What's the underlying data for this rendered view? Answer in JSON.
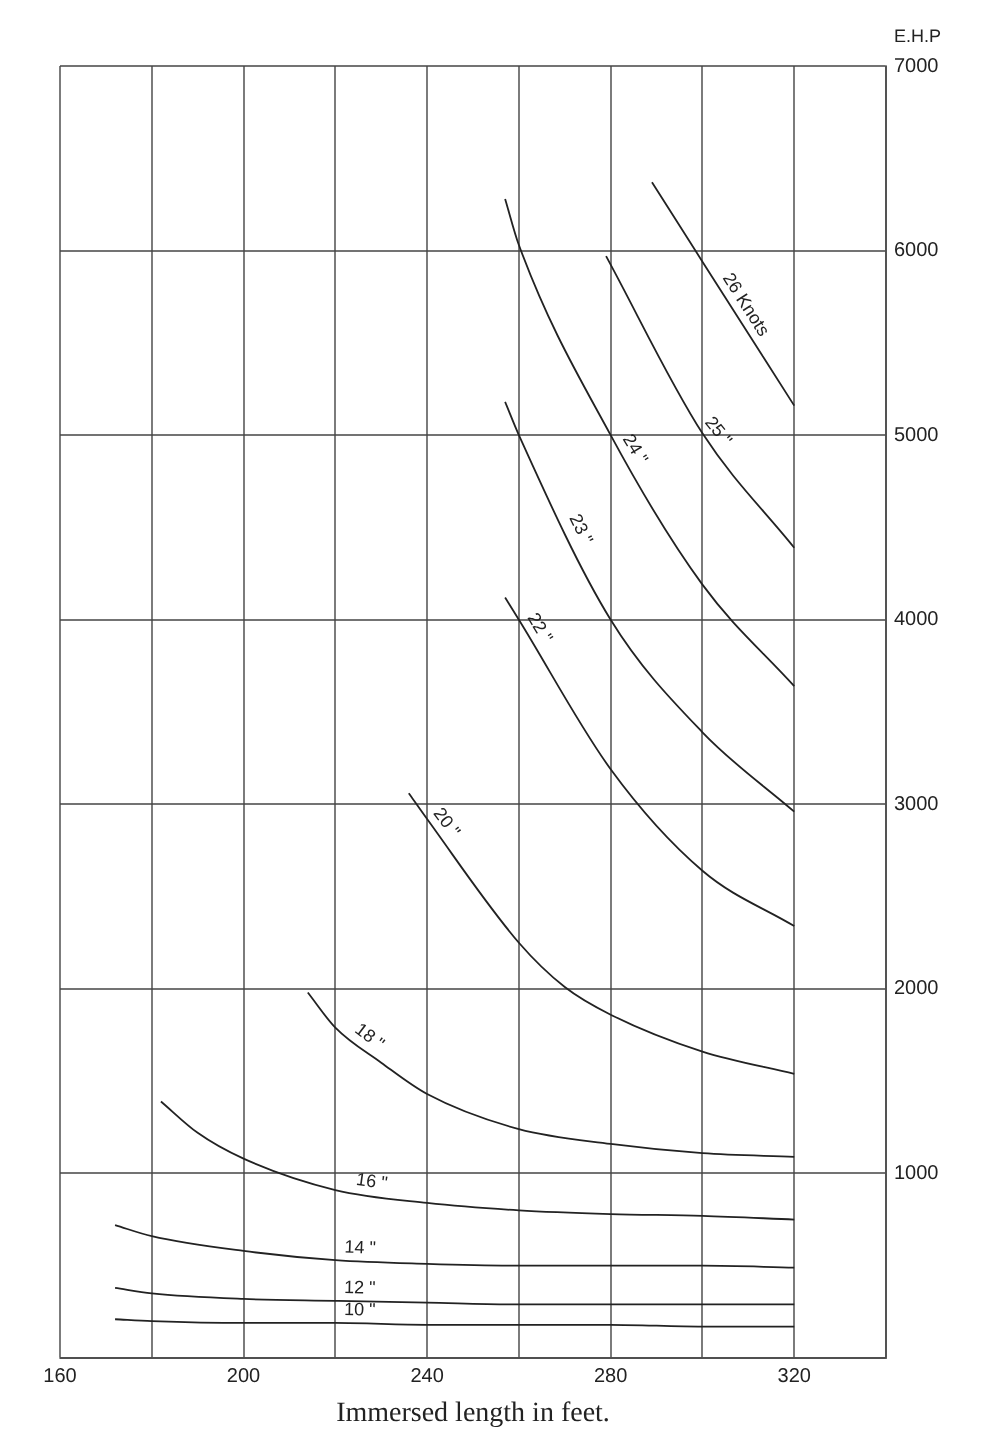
{
  "chart_data": {
    "type": "line",
    "xlabel": "Immersed length in feet.",
    "ylabel": "E.H.P",
    "xlim": [
      160,
      340
    ],
    "xticks": [
      160,
      {
        "value": 180,
        "label": null
      },
      200,
      {
        "value": 220,
        "label": null
      },
      240,
      {
        "value": 260,
        "label": null
      },
      280,
      {
        "value": 300,
        "label": null
      },
      320,
      {
        "value": 340,
        "label": null
      }
    ],
    "ylim": [
      0,
      7000
    ],
    "yticks": [
      {
        "value": 0,
        "label": null
      },
      1000,
      2000,
      3000,
      4000,
      5000,
      6000,
      7000
    ],
    "grid": true,
    "series": [
      {
        "name": "10 \"",
        "color": "#222222",
        "x": [
          172,
          180,
          200,
          220,
          240,
          260,
          280,
          300,
          320
        ],
        "values": [
          210,
          200,
          190,
          190,
          180,
          180,
          180,
          170,
          170
        ]
      },
      {
        "name": "12 \"",
        "color": "#222222",
        "x": [
          172,
          180,
          200,
          220,
          240,
          260,
          280,
          300,
          320
        ],
        "values": [
          380,
          350,
          320,
          310,
          300,
          290,
          290,
          290,
          290
        ]
      },
      {
        "name": "14 \"",
        "color": "#222222",
        "x": [
          172,
          180,
          200,
          220,
          240,
          260,
          280,
          300,
          320
        ],
        "values": [
          720,
          660,
          580,
          530,
          510,
          500,
          500,
          500,
          490
        ]
      },
      {
        "name": "16 \"",
        "color": "#222222",
        "x": [
          182,
          190,
          200,
          220,
          240,
          260,
          280,
          300,
          320
        ],
        "values": [
          1390,
          1220,
          1080,
          910,
          840,
          800,
          780,
          770,
          750
        ]
      },
      {
        "name": "18 \"",
        "color": "#222222",
        "x": [
          214,
          220,
          230,
          240,
          260,
          280,
          300,
          320
        ],
        "values": [
          1980,
          1790,
          1600,
          1430,
          1240,
          1160,
          1110,
          1090
        ]
      },
      {
        "name": "20 \"",
        "color": "#222222",
        "x": [
          236,
          240,
          260,
          270,
          280,
          300,
          320
        ],
        "values": [
          3060,
          2920,
          2250,
          2010,
          1860,
          1660,
          1540
        ]
      },
      {
        "name": "22 \"",
        "color": "#222222",
        "x": [
          257,
          260,
          280,
          300,
          320
        ],
        "values": [
          4120,
          4000,
          3190,
          2640,
          2340
        ]
      },
      {
        "name": "23 \"",
        "color": "#222222",
        "x": [
          257,
          260,
          280,
          300,
          320
        ],
        "values": [
          5180,
          5000,
          4000,
          3390,
          2960
        ]
      },
      {
        "name": "24 \"",
        "color": "#222222",
        "x": [
          257,
          260,
          280,
          300,
          320
        ],
        "values": [
          6280,
          6030,
          5000,
          4190,
          3640
        ]
      },
      {
        "name": "25 \"",
        "color": "#222222",
        "x": [
          279,
          300,
          320
        ],
        "values": [
          5970,
          5010,
          4390
        ]
      },
      {
        "name": "26 Knots",
        "color": "#222222",
        "x": [
          289,
          300,
          320
        ],
        "values": [
          6370,
          5940,
          5160
        ]
      }
    ]
  }
}
